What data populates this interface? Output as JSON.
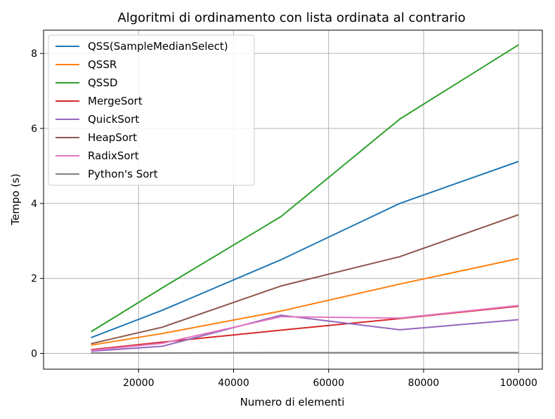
{
  "chart_data": {
    "type": "line",
    "title": "Algoritmi di ordinamento con lista ordinata al contrario",
    "xlabel": "Numero di elementi",
    "ylabel": "Tempo (s)",
    "xlim": [
      0,
      105000
    ],
    "ylim": [
      -0.42,
      8.62
    ],
    "xticks": [
      20000,
      40000,
      60000,
      80000,
      100000
    ],
    "yticks": [
      0,
      2,
      4,
      6,
      8
    ],
    "grid": true,
    "legend_position": "upper-left",
    "x": [
      10000,
      25000,
      50000,
      75000,
      100000
    ],
    "series": [
      {
        "name": "QSS(SampleMedianSelect)",
        "color": "#1f77b4",
        "values": [
          0.42,
          1.15,
          2.5,
          4.0,
          5.12
        ]
      },
      {
        "name": "QSSR",
        "color": "#ff7f0e",
        "values": [
          0.22,
          0.53,
          1.13,
          1.85,
          2.53
        ]
      },
      {
        "name": "QSSD",
        "color": "#2ca02c",
        "values": [
          0.58,
          1.75,
          3.65,
          6.25,
          8.23
        ]
      },
      {
        "name": "MergeSort",
        "color": "#d62728",
        "values": [
          0.1,
          0.3,
          0.62,
          0.93,
          1.26
        ]
      },
      {
        "name": "QuickSort",
        "color": "#9467bd",
        "values": [
          0.06,
          0.19,
          1.02,
          0.63,
          0.9
        ]
      },
      {
        "name": "HeapSort",
        "color": "#8c564b",
        "values": [
          0.26,
          0.7,
          1.8,
          2.58,
          3.7
        ]
      },
      {
        "name": "RadixSort",
        "color": "#e377c2",
        "values": [
          0.08,
          0.27,
          0.98,
          0.94,
          1.28
        ]
      },
      {
        "name": "Python's Sort",
        "color": "#7f7f7f",
        "values": [
          0.01,
          0.01,
          0.02,
          0.02,
          0.02
        ]
      }
    ]
  }
}
